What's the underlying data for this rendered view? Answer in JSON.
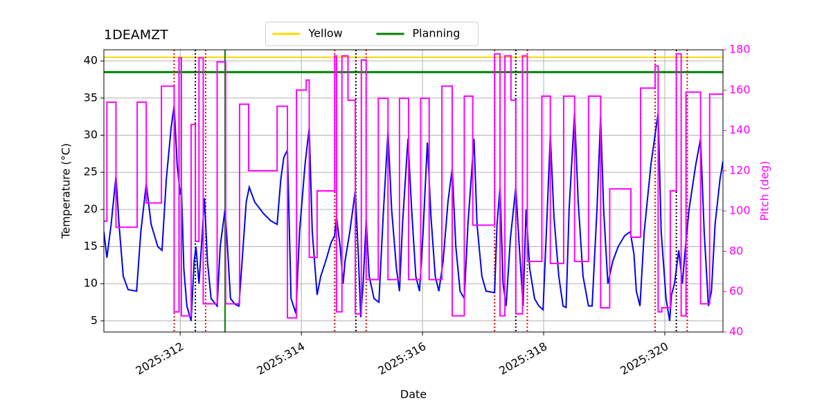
{
  "chart_data": {
    "type": "line",
    "title": "1DEAMZT",
    "xlabel": "Date",
    "ylabel": "Temperature (°C)",
    "y2label": "Pitch (deg)",
    "y2color": "#ff00ff",
    "xlim": [
      310.74,
      320.96
    ],
    "xticks": [
      {
        "value": 312,
        "label": "2025:312"
      },
      {
        "value": 314,
        "label": "2025:314"
      },
      {
        "value": 316,
        "label": "2025:316"
      },
      {
        "value": 318,
        "label": "2025:318"
      },
      {
        "value": 320,
        "label": "2025:320"
      }
    ],
    "ylim": [
      3.5,
      41.5
    ],
    "yticks": [
      5,
      10,
      15,
      20,
      25,
      30,
      35,
      40
    ],
    "y2lim": [
      40,
      180
    ],
    "y2ticks": [
      40,
      60,
      80,
      100,
      120,
      140,
      160,
      180
    ],
    "grid": true,
    "legend": "upper center",
    "series": [
      {
        "color": "#0000ee",
        "axis": "y",
        "x": [
          310.74,
          310.79,
          310.86,
          310.94,
          310.99,
          311.06,
          311.14,
          311.28,
          311.35,
          311.44,
          311.52,
          311.63,
          311.7,
          311.77,
          311.85,
          311.9,
          311.95,
          312.0,
          312.02,
          312.06,
          312.11,
          312.18,
          312.23,
          312.26,
          312.31,
          312.35,
          312.4,
          312.45,
          312.51,
          312.61,
          312.66,
          312.74,
          312.78,
          312.83,
          312.91,
          312.97,
          313.03,
          313.09,
          313.14,
          313.23,
          313.37,
          313.49,
          313.6,
          313.66,
          313.71,
          313.77,
          313.83,
          313.91,
          313.97,
          314.06,
          314.13,
          314.18,
          314.26,
          314.32,
          314.4,
          314.49,
          314.55,
          314.58,
          314.64,
          314.69,
          314.72,
          314.8,
          314.89,
          314.94,
          314.98,
          315.02,
          315.07,
          315.12,
          315.2,
          315.28,
          315.35,
          315.43,
          315.49,
          315.57,
          315.62,
          315.67,
          315.76,
          315.82,
          315.89,
          315.95,
          316.01,
          316.08,
          316.14,
          316.21,
          316.27,
          316.34,
          316.42,
          316.49,
          316.55,
          316.62,
          316.69,
          316.75,
          316.85,
          316.9,
          316.98,
          317.05,
          317.19,
          317.23,
          317.28,
          317.33,
          317.38,
          317.45,
          317.54,
          317.59,
          317.66,
          317.71,
          317.77,
          317.85,
          317.92,
          317.99,
          318.05,
          318.11,
          318.17,
          318.25,
          318.32,
          318.37,
          318.42,
          318.51,
          318.57,
          318.65,
          318.74,
          318.8,
          318.88,
          318.94,
          318.99,
          319.06,
          319.14,
          319.23,
          319.34,
          319.43,
          319.49,
          319.53,
          319.59,
          319.66,
          319.77,
          319.89,
          319.94,
          320.02,
          320.08,
          320.11,
          320.16,
          320.23,
          320.29,
          320.33,
          320.4,
          320.51,
          320.59,
          320.65,
          320.72,
          320.77,
          320.83,
          320.91,
          320.96
        ],
        "values": [
          17,
          13.5,
          18,
          24.5,
          18,
          11,
          9.2,
          9,
          17,
          23.5,
          18,
          15,
          14.5,
          24,
          31,
          34,
          26,
          22,
          23,
          12,
          7,
          5,
          13,
          15,
          10,
          15,
          21.5,
          13,
          8,
          7,
          15,
          20,
          15,
          8,
          7.2,
          7,
          14,
          21,
          23,
          21,
          19.5,
          18.5,
          18,
          24,
          27,
          28,
          8,
          6,
          17,
          26,
          31,
          17,
          8.5,
          11,
          13,
          15.5,
          16.5,
          19,
          15,
          10,
          13,
          17,
          22.5,
          14,
          5.5,
          10,
          18.5,
          11,
          8,
          7.5,
          19,
          30.5,
          20,
          12,
          9,
          18,
          29.5,
          20,
          11,
          9,
          17,
          29,
          19,
          11,
          9,
          13,
          21,
          25.5,
          15,
          9,
          8,
          18,
          29.5,
          18,
          11,
          9,
          8.8,
          18,
          23,
          10,
          7,
          16,
          23,
          16,
          7,
          20,
          12,
          8,
          7,
          6.5,
          18,
          30,
          19,
          11,
          7,
          6.8,
          20,
          33,
          21,
          11,
          7,
          7,
          20,
          32.5,
          20,
          10,
          13,
          15,
          16.5,
          17,
          14,
          9,
          7,
          17,
          26,
          33,
          17,
          8,
          5,
          8.5,
          10,
          14.5,
          10,
          14,
          20,
          26,
          29.5,
          17,
          7,
          9,
          18,
          24,
          26.5
        ]
      },
      {
        "color": "#ff00ff",
        "axis": "y2",
        "drawstyle": "steps-post",
        "x": [
          310.74,
          310.79,
          310.94,
          311.29,
          311.44,
          311.69,
          311.9,
          311.98,
          312.02,
          312.18,
          312.25,
          312.31,
          312.38,
          312.61,
          312.75,
          312.98,
          313.13,
          313.6,
          313.77,
          313.92,
          314.08,
          314.13,
          314.26,
          314.55,
          314.58,
          314.67,
          314.77,
          314.89,
          314.99,
          315.07,
          315.27,
          315.43,
          315.62,
          315.77,
          315.97,
          316.11,
          316.32,
          316.49,
          316.69,
          316.83,
          317.19,
          317.28,
          317.36,
          317.46,
          317.54,
          317.65,
          317.73,
          317.97,
          318.11,
          318.33,
          318.51,
          318.74,
          318.94,
          319.09,
          319.44,
          319.6,
          319.84,
          319.89,
          319.95,
          320.09,
          320.19,
          320.27,
          320.35,
          320.59,
          320.74,
          320.96
        ],
        "values": [
          95,
          154,
          92,
          154,
          104,
          162,
          50,
          176,
          48,
          143,
          85,
          176,
          54,
          174,
          54,
          153,
          120,
          152,
          47,
          160,
          165,
          77,
          110,
          177,
          50,
          177,
          155,
          49,
          175,
          66,
          156,
          66,
          156,
          66,
          156,
          66,
          162,
          48,
          157,
          93,
          178,
          48,
          177,
          155,
          49,
          177,
          75,
          157,
          74,
          157,
          75,
          157,
          52,
          111,
          87,
          161,
          172,
          50,
          52,
          110,
          178,
          48,
          159,
          54,
          158,
          158
        ]
      }
    ],
    "hlines": [
      {
        "name": "Yellow",
        "color": "#ffd700",
        "value": 40.5
      },
      {
        "name": "Planning",
        "color": "#008000",
        "value": 38.5
      }
    ],
    "vlines": [
      {
        "color": "#ee0000",
        "style": "dotted",
        "x": [
          311.9,
          312.42,
          314.55,
          315.07,
          317.19,
          317.73,
          319.84,
          320.37
        ]
      },
      {
        "color": "#000000",
        "style": "dotted",
        "x": [
          312.25,
          314.9,
          317.54,
          320.19
        ]
      },
      {
        "color": "#008000",
        "style": "solid",
        "x": [
          312.74
        ]
      }
    ]
  }
}
